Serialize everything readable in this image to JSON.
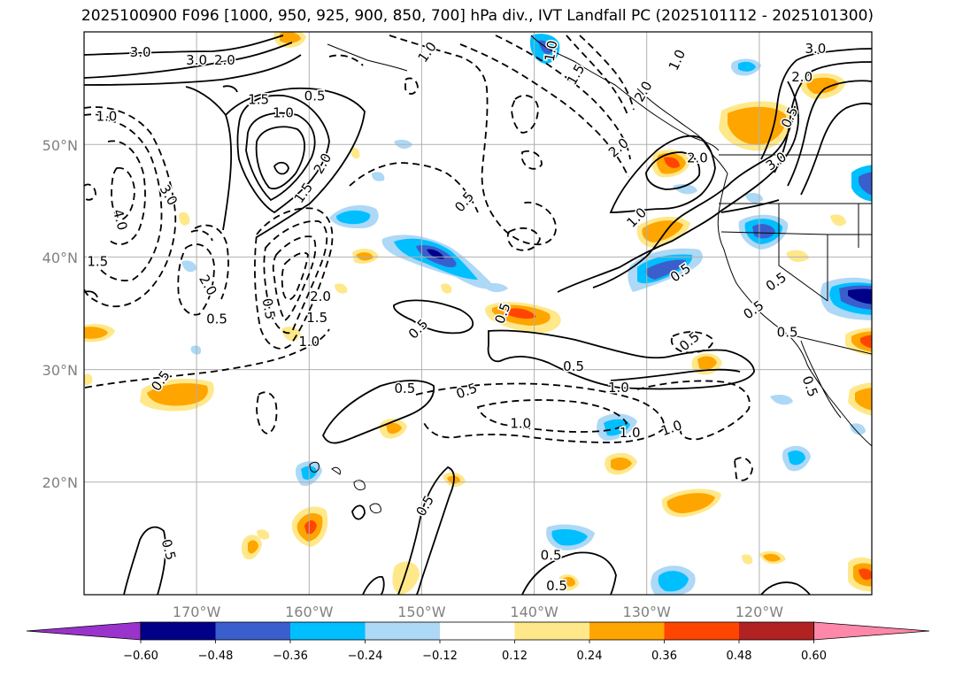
{
  "title": "2025100900 F096 [1000, 950, 925, 900, 850, 700] hPa div., IVT Landfall PC (2025101112 - 2025101300)",
  "map": {
    "lon_range": [
      -180,
      -110
    ],
    "lat_range": [
      10,
      60
    ],
    "gridlines": true
  },
  "lat_ticks": [
    {
      "value": 20,
      "label": "20°N"
    },
    {
      "value": 30,
      "label": "30°N"
    },
    {
      "value": 40,
      "label": "40°N"
    },
    {
      "value": 50,
      "label": "50°N"
    }
  ],
  "lon_ticks": [
    {
      "value": -170,
      "label": "170°W"
    },
    {
      "value": -160,
      "label": "160°W"
    },
    {
      "value": -150,
      "label": "150°W"
    },
    {
      "value": -140,
      "label": "140°W"
    },
    {
      "value": -130,
      "label": "130°W"
    },
    {
      "value": -120,
      "label": "120°W"
    }
  ],
  "colorbar": {
    "bounds": [
      "−0.60",
      "−0.48",
      "−0.36",
      "−0.24",
      "−0.12",
      "0.12",
      "0.24",
      "0.36",
      "0.48",
      "0.60"
    ],
    "colors": [
      "#9933cc",
      "#000088",
      "#3a5fcd",
      "#00bfff",
      "#add8f6",
      "#ffffff",
      "#ffe88a",
      "#ffa500",
      "#ff4500",
      "#b22222",
      "#ff88aa"
    ],
    "extend": "both"
  },
  "contour_labels": [
    {
      "text": "3.0",
      "lon": -175,
      "lat": 58.2,
      "rot": 0
    },
    {
      "text": "3.0",
      "lon": -170,
      "lat": 57.5,
      "rot": 0
    },
    {
      "text": "2.0",
      "lon": -167.5,
      "lat": 57.5,
      "rot": 0
    },
    {
      "text": "1.5",
      "lon": -164.5,
      "lat": 54,
      "rot": 0
    },
    {
      "text": "0.5",
      "lon": -159.5,
      "lat": 54.3,
      "rot": 0
    },
    {
      "text": "1.0",
      "lon": -162.3,
      "lat": 52.8,
      "rot": 0
    },
    {
      "text": "2.0",
      "lon": -158.8,
      "lat": 48.3,
      "rot": -60
    },
    {
      "text": "1.5",
      "lon": -160.5,
      "lat": 45.7,
      "rot": -55
    },
    {
      "text": "1.0",
      "lon": -178,
      "lat": 52.5,
      "rot": 0
    },
    {
      "text": "3.0",
      "lon": -172.5,
      "lat": 45.5,
      "rot": 60
    },
    {
      "text": "4.0",
      "lon": -176.8,
      "lat": 43.3,
      "rot": 75
    },
    {
      "text": "1.5",
      "lon": -178.8,
      "lat": 39.6,
      "rot": 0
    },
    {
      "text": "2.0",
      "lon": -169,
      "lat": 37.5,
      "rot": 60
    },
    {
      "text": "0.5",
      "lon": -168.2,
      "lat": 34.5,
      "rot": 0
    },
    {
      "text": "2.0",
      "lon": -159,
      "lat": 36.5,
      "rot": 0
    },
    {
      "text": "1.5",
      "lon": -159.3,
      "lat": 34.6,
      "rot": 0
    },
    {
      "text": "1.0",
      "lon": -160,
      "lat": 32.5,
      "rot": 0
    },
    {
      "text": "0.5",
      "lon": -163.6,
      "lat": 35.4,
      "rot": 80
    },
    {
      "text": "1.0",
      "lon": -149.5,
      "lat": 58.2,
      "rot": -55
    },
    {
      "text": "1.0",
      "lon": -138.5,
      "lat": 58.3,
      "rot": -80
    },
    {
      "text": "0.5",
      "lon": -146.2,
      "lat": 44.9,
      "rot": -50
    },
    {
      "text": "1.5",
      "lon": -136.3,
      "lat": 56.2,
      "rot": -60
    },
    {
      "text": "2.0",
      "lon": -130.3,
      "lat": 54.7,
      "rot": -60
    },
    {
      "text": "1.0",
      "lon": -127.3,
      "lat": 57.5,
      "rot": -65
    },
    {
      "text": "2.0",
      "lon": -132.5,
      "lat": 49.7,
      "rot": -40
    },
    {
      "text": "3.0",
      "lon": -115,
      "lat": 58.5,
      "rot": 0
    },
    {
      "text": "2.0",
      "lon": -116.2,
      "lat": 56,
      "rot": 0
    },
    {
      "text": "2.0",
      "lon": -125.5,
      "lat": 48.8,
      "rot": 0
    },
    {
      "text": "3.0",
      "lon": -118.5,
      "lat": 48.5,
      "rot": -35
    },
    {
      "text": "0.5",
      "lon": -117.3,
      "lat": 52.4,
      "rot": -65
    },
    {
      "text": "1.0",
      "lon": -130.9,
      "lat": 43.5,
      "rot": -45
    },
    {
      "text": "0.5",
      "lon": -127,
      "lat": 38.6,
      "rot": -35
    },
    {
      "text": "0.5",
      "lon": -118.5,
      "lat": 37.8,
      "rot": -35
    },
    {
      "text": "0.5",
      "lon": -120.5,
      "lat": 35.3,
      "rot": -35
    },
    {
      "text": "0.5",
      "lon": -117.5,
      "lat": 33.3,
      "rot": 0
    },
    {
      "text": "0.5",
      "lon": -126.2,
      "lat": 32.5,
      "rot": -40
    },
    {
      "text": "0.5",
      "lon": -150.3,
      "lat": 33.6,
      "rot": -45
    },
    {
      "text": "0.5",
      "lon": -142.8,
      "lat": 35,
      "rot": -70
    },
    {
      "text": "0.5",
      "lon": -136.5,
      "lat": 30.3,
      "rot": 0
    },
    {
      "text": "1.0",
      "lon": -132.5,
      "lat": 28.4,
      "rot": 0
    },
    {
      "text": "0.5",
      "lon": -173.2,
      "lat": 29,
      "rot": -55
    },
    {
      "text": "0.5",
      "lon": -151.5,
      "lat": 28.3,
      "rot": 0
    },
    {
      "text": "0.5",
      "lon": -146,
      "lat": 28.1,
      "rot": -20
    },
    {
      "text": "1.0",
      "lon": -141.2,
      "lat": 25.2,
      "rot": 0
    },
    {
      "text": "1.0",
      "lon": -127.8,
      "lat": 24.8,
      "rot": -20
    },
    {
      "text": "1.0",
      "lon": -131.5,
      "lat": 24.4,
      "rot": 0
    },
    {
      "text": "0.5",
      "lon": -115.5,
      "lat": 28.5,
      "rot": 70
    },
    {
      "text": "0.5",
      "lon": -149.7,
      "lat": 17.9,
      "rot": -60
    },
    {
      "text": "0.5",
      "lon": -172.5,
      "lat": 14,
      "rot": 75
    },
    {
      "text": "0.5",
      "lon": -138.5,
      "lat": 13.5,
      "rot": 0
    },
    {
      "text": "0.5",
      "lon": -138,
      "lat": 10.8,
      "rot": 0
    }
  ]
}
